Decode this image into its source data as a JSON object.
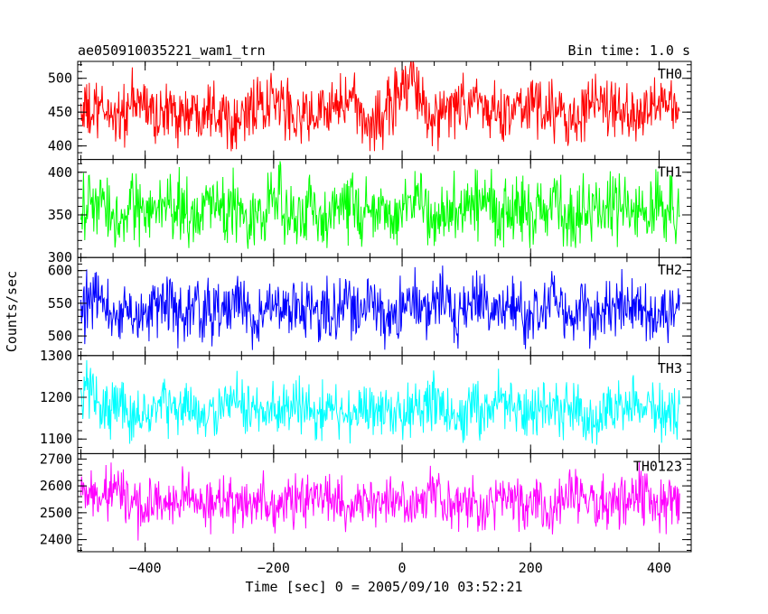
{
  "header": {
    "title": "ae050910035221_wam1_trn",
    "bin_label": "Bin time: 1.0 s"
  },
  "xlabel": "Time [sec] 0 = 2005/09/10 03:52:21",
  "ylabel": "Counts/sec",
  "chart_data": {
    "type": "line",
    "x_range": [
      -505,
      450
    ],
    "x_data_range": [
      -500,
      432
    ],
    "x_ticks": [
      -400,
      -200,
      0,
      200,
      400
    ],
    "grid": false,
    "panels": [
      {
        "name": "TH0",
        "color": "#ff0000",
        "ylim": [
          380,
          525
        ],
        "yticks": [
          400,
          450,
          500
        ],
        "mean": 452,
        "amplitude": 36,
        "low_clip": 392,
        "bumps": [
          [
            -40,
            20,
            440
          ],
          [
            5,
            20,
            490
          ],
          [
            120,
            15,
            460
          ],
          [
            390,
            15,
            470
          ]
        ]
      },
      {
        "name": "TH1",
        "color": "#00ff00",
        "ylim": [
          300,
          415
        ],
        "yticks": [
          300,
          350,
          400
        ],
        "mean": 356,
        "amplitude": 31,
        "low_clip": 310,
        "bumps": []
      },
      {
        "name": "TH2",
        "color": "#0000ff",
        "ylim": [
          470,
          620
        ],
        "yticks": [
          500,
          550,
          600
        ],
        "mean": 540,
        "amplitude": 37,
        "low_clip": 478,
        "bumps": []
      },
      {
        "name": "TH3",
        "color": "#00ffff",
        "ylim": [
          1065,
          1300
        ],
        "yticks": [
          1100,
          1200,
          1300
        ],
        "mean": 1170,
        "amplitude": 52,
        "low_clip": 1085,
        "bumps": [
          [
            -490,
            15,
            1215
          ]
        ]
      },
      {
        "name": "TH0123",
        "color": "#ff00ff",
        "ylim": [
          2355,
          2720
        ],
        "yticks": [
          2400,
          2500,
          2600,
          2700
        ],
        "mean": 2540,
        "amplitude": 75,
        "low_clip": 2385,
        "bumps": [
          [
            -470,
            30,
            2580
          ]
        ]
      }
    ]
  }
}
